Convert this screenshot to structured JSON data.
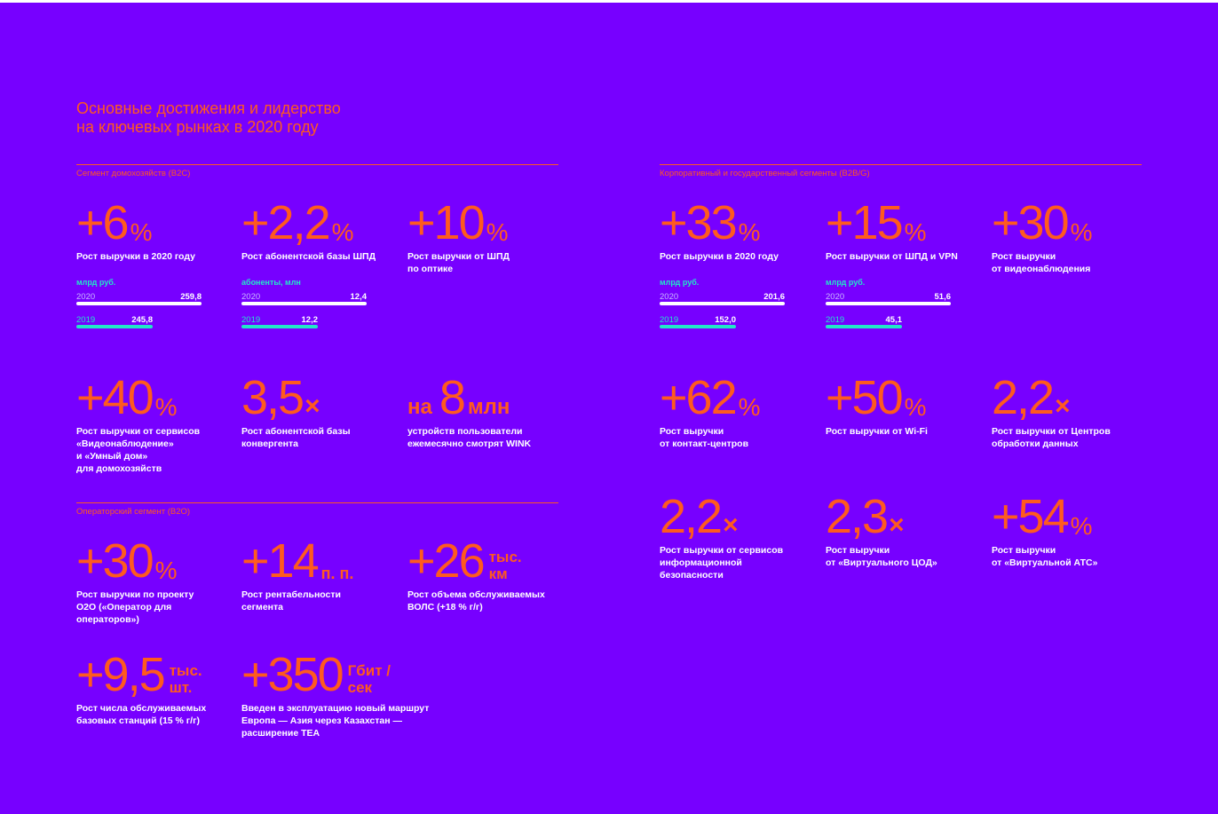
{
  "title_line1": "Основные достижения и лидерство",
  "title_line2": "на ключевых рынках в 2020 году",
  "colors": {
    "background": "#7700ff",
    "accent": "#ff5a1f",
    "bar2020": "#ffffff",
    "bar2019": "#22e6c8"
  },
  "b2c": {
    "label": "Сегмент домохозяйств (В2С)",
    "m1": {
      "value": "+6",
      "suffix": "%",
      "desc1": "Рост выручки в 2020 году",
      "unit": "млрд руб.",
      "y2020": "2020",
      "v2020": "259,8",
      "n2020": 259.8,
      "y2019": "2019",
      "v2019": "245,8",
      "n2019": 245.8
    },
    "m2": {
      "value": "+2,2",
      "suffix": "%",
      "desc1": "Рост абонентской базы ШПД",
      "unit": "абоненты, млн",
      "y2020": "2020",
      "v2020": "12,4",
      "n2020": 12.4,
      "y2019": "2019",
      "v2019": "12,2",
      "n2019": 12.2
    },
    "m3": {
      "value": "+10",
      "suffix": "%",
      "desc1": "Рост выручки от ШПД",
      "desc2": "по оптике"
    },
    "m4": {
      "value": "+40",
      "suffix": "%",
      "desc1": "Рост выручки от сервисов",
      "desc2": "«Видеонаблюдение»",
      "desc3": "и «Умный дом»",
      "desc4": "для домохозяйств"
    },
    "m5": {
      "value": "3,5",
      "suffix": "×",
      "desc1": "Рост абонентской базы",
      "desc2": "конвергента"
    },
    "m6": {
      "prefix": "на",
      "value": "8",
      "suffix": "млн",
      "desc1": "устройств пользователи",
      "desc2": "ежемесячно смотрят WINK"
    }
  },
  "b2o": {
    "label": "Операторский сегмент (В2О)",
    "m1": {
      "value": "+30",
      "suffix": "%",
      "desc1": "Рост выручки по проекту",
      "desc2": "O2O («Оператор для",
      "desc3": "операторов»)"
    },
    "m2": {
      "value": "+14",
      "suffix": "п. п.",
      "desc1": "Рост рентабельности",
      "desc2": "сегмента"
    },
    "m3": {
      "value": "+26",
      "suffix1": "тыс.",
      "suffix2": "км",
      "desc1": "Рост объема обслуживаемых",
      "desc2": "ВОЛС (+18 % г/г)"
    },
    "m4": {
      "value": "+9,5",
      "suffix1": "тыс.",
      "suffix2": "шт.",
      "desc1": "Рост числа обслуживаемых",
      "desc2": "базовых станций (15 % г/г)"
    },
    "m5": {
      "value": "+350",
      "suffix1": "Гбит /",
      "suffix2": "сек",
      "desc1": "Введен в эксплуатацию новый маршрут",
      "desc2": "Европа — Азия через Казахстан —",
      "desc3": "расширение TEA"
    }
  },
  "b2b": {
    "label": "Корпоративный и государственный сегменты (В2В/G)",
    "m1": {
      "value": "+33",
      "suffix": "%",
      "desc1": "Рост выручки в 2020 году",
      "unit": "млрд руб.",
      "y2020": "2020",
      "v2020": "201,6",
      "n2020": 201.6,
      "y2019": "2019",
      "v2019": "152,0",
      "n2019": 152.0
    },
    "m2": {
      "value": "+15",
      "suffix": "%",
      "desc1": "Рост выручки от ШПД и VPN",
      "unit": "млрд руб.",
      "y2020": "2020",
      "v2020": "51,6",
      "n2020": 51.6,
      "y2019": "2019",
      "v2019": "45,1",
      "n2019": 45.1
    },
    "m3": {
      "value": "+30",
      "suffix": "%",
      "desc1": "Рост выручки",
      "desc2": "от видеонаблюдения"
    },
    "m4": {
      "value": "+62",
      "suffix": "%",
      "desc1": "Рост выручки",
      "desc2": "от контакт-центров"
    },
    "m5": {
      "value": "+50",
      "suffix": "%",
      "desc1": "Рост выручки от Wi-Fi"
    },
    "m6": {
      "value": "2,2",
      "suffix": "×",
      "desc1": "Рост выручки от Центров",
      "desc2": "обработки данных"
    },
    "m7": {
      "value": "2,2",
      "suffix": "×",
      "desc1": "Рост выручки от сервисов",
      "desc2": "информационной",
      "desc3": "безопасности"
    },
    "m8": {
      "value": "2,3",
      "suffix": "×",
      "desc1": "Рост выручки",
      "desc2": "от «Виртуального ЦОД»"
    },
    "m9": {
      "value": "+54",
      "suffix": "%",
      "desc1": "Рост выручки",
      "desc2": "от «Виртуальной АТС»"
    }
  }
}
